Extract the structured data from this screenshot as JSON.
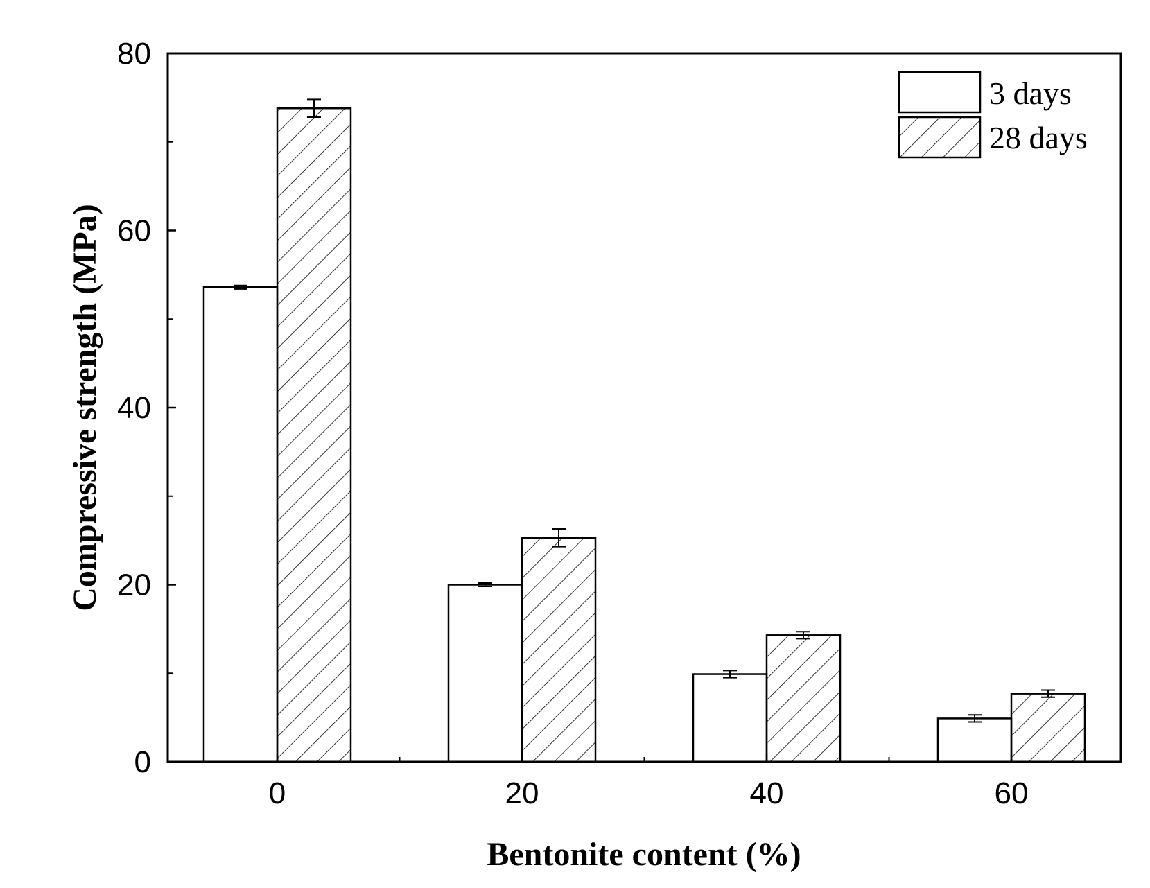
{
  "chart_data": {
    "type": "bar",
    "xlabel": "Bentonite content (%)",
    "ylabel": "Compressive strength (MPa)",
    "ylim": [
      0,
      80
    ],
    "y_ticks": [
      0,
      20,
      40,
      60,
      80
    ],
    "categories": [
      "0",
      "20",
      "40",
      "60"
    ],
    "series": [
      {
        "name": "3 days",
        "values": [
          53.6,
          20.0,
          9.9,
          4.9
        ],
        "errors": [
          0.2,
          0.2,
          0.4,
          0.4
        ],
        "fill": "none"
      },
      {
        "name": "28 days",
        "values": [
          73.8,
          25.3,
          14.3,
          7.7
        ],
        "errors": [
          1.0,
          1.0,
          0.4,
          0.4
        ],
        "fill": "hatch"
      }
    ],
    "legend_position": "top-right",
    "grid": false,
    "colors": {
      "bar_fill": "#ffffff",
      "stroke": "#000000"
    }
  }
}
